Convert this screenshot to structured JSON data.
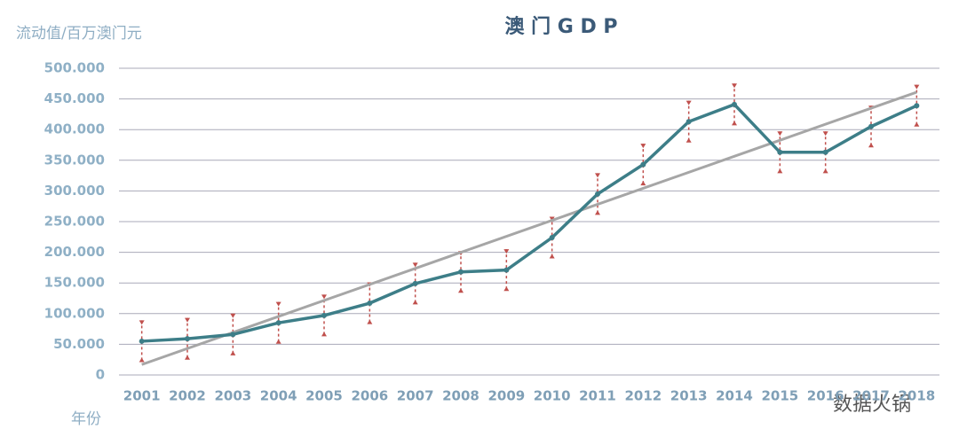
{
  "chart_data": {
    "type": "line",
    "title": "澳 门 G D P",
    "y_label": "流动值/百万澳门元",
    "x_label": "年份",
    "watermark": "数据火锅",
    "categories": [
      "2001",
      "2002",
      "2003",
      "2004",
      "2005",
      "2006",
      "2007",
      "2008",
      "2009",
      "2010",
      "2011",
      "2012",
      "2013",
      "2014",
      "2015",
      "2016",
      "2017",
      "2018"
    ],
    "series": [
      {
        "color": "#3d7e88",
        "values": [
          55000,
          59000,
          66000,
          85000,
          97000,
          117000,
          149000,
          168000,
          171000,
          224000,
          295000,
          343000,
          413000,
          441000,
          363000,
          363000,
          405000,
          439000
        ],
        "error": 34000,
        "error_color": "#c0504d"
      }
    ],
    "trendline": {
      "color": "#a6a6a6",
      "values": [
        17000,
        461000
      ]
    },
    "ylim": [
      0,
      500000
    ],
    "yticks": [
      0,
      {
        "value": 50000,
        "label": "50.000"
      },
      {
        "value": 100000,
        "label": "100.000"
      },
      {
        "value": 150000,
        "label": "150.000"
      },
      {
        "value": 200000,
        "label": "200.000"
      },
      {
        "value": 250000,
        "label": "250.000"
      },
      {
        "value": 300000,
        "label": "300.000"
      },
      {
        "value": 350000,
        "label": "350.000"
      },
      {
        "value": 400000,
        "label": "400.000"
      },
      {
        "value": 450000,
        "label": "450.000"
      },
      {
        "value": 500000,
        "label": "500.000"
      }
    ],
    "grid": true
  }
}
